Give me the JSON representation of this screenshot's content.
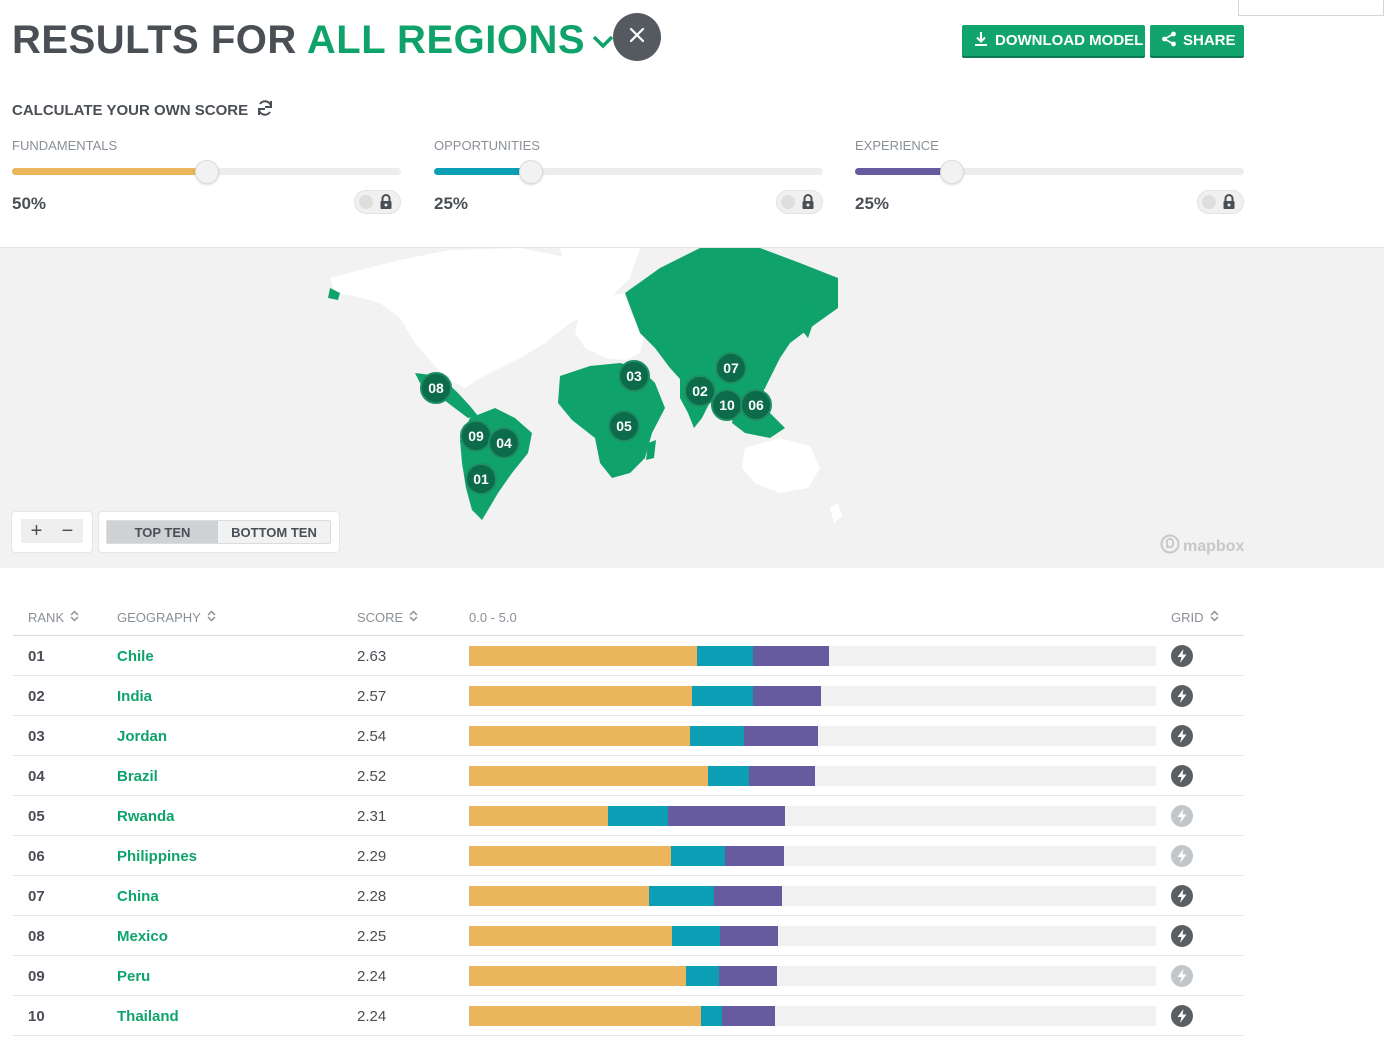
{
  "header": {
    "title_prefix": "RESULTS FOR",
    "region": "ALL REGIONS",
    "download_label": "DOWNLOAD MODEL",
    "share_label": "SHARE"
  },
  "calculator": {
    "title": "CALCULATE YOUR OWN SCORE",
    "sliders": [
      {
        "label": "FUNDAMENTALS",
        "value_label": "50%",
        "value": 0.5,
        "color": "#ebb55b"
      },
      {
        "label": "OPPORTUNITIES",
        "value_label": "25%",
        "value": 0.25,
        "color": "#0b9eb4"
      },
      {
        "label": "EXPERIENCE",
        "value_label": "25%",
        "value": 0.25,
        "color": "#655b9e"
      }
    ]
  },
  "map": {
    "markers": [
      "01",
      "02",
      "03",
      "04",
      "05",
      "06",
      "07",
      "08",
      "09",
      "10"
    ],
    "zoom_in": "+",
    "zoom_out": "−",
    "top_ten": "TOP TEN",
    "bottom_ten": "BOTTOM TEN",
    "attribution": "mapbox"
  },
  "table": {
    "headers": {
      "rank": "RANK",
      "geography": "GEOGRAPHY",
      "score": "SCORE",
      "range": "0.0 - 5.0",
      "grid": "GRID"
    },
    "scale_max": 5.0,
    "rows": [
      {
        "rank": "01",
        "geography": "Chile",
        "score": "2.63",
        "fundamentals": 1.66,
        "opportunities": 0.41,
        "experience": 0.55,
        "grid": "dark"
      },
      {
        "rank": "02",
        "geography": "India",
        "score": "2.57",
        "fundamentals": 1.62,
        "opportunities": 0.45,
        "experience": 0.49,
        "grid": "dark"
      },
      {
        "rank": "03",
        "geography": "Jordan",
        "score": "2.54",
        "fundamentals": 1.61,
        "opportunities": 0.39,
        "experience": 0.54,
        "grid": "dark"
      },
      {
        "rank": "04",
        "geography": "Brazil",
        "score": "2.52",
        "fundamentals": 1.74,
        "opportunities": 0.3,
        "experience": 0.48,
        "grid": "dark"
      },
      {
        "rank": "05",
        "geography": "Rwanda",
        "score": "2.31",
        "fundamentals": 1.01,
        "opportunities": 0.44,
        "experience": 0.85,
        "grid": "light"
      },
      {
        "rank": "06",
        "geography": "Philippines",
        "score": "2.29",
        "fundamentals": 1.47,
        "opportunities": 0.39,
        "experience": 0.43,
        "grid": "light"
      },
      {
        "rank": "07",
        "geography": "China",
        "score": "2.28",
        "fundamentals": 1.31,
        "opportunities": 0.47,
        "experience": 0.5,
        "grid": "dark"
      },
      {
        "rank": "08",
        "geography": "Mexico",
        "score": "2.25",
        "fundamentals": 1.48,
        "opportunities": 0.35,
        "experience": 0.42,
        "grid": "dark"
      },
      {
        "rank": "09",
        "geography": "Peru",
        "score": "2.24",
        "fundamentals": 1.58,
        "opportunities": 0.24,
        "experience": 0.42,
        "grid": "light"
      },
      {
        "rank": "10",
        "geography": "Thailand",
        "score": "2.24",
        "fundamentals": 1.69,
        "opportunities": 0.15,
        "experience": 0.39,
        "grid": "dark"
      }
    ]
  },
  "colors": {
    "brand_green": "#0fa36b",
    "fundamentals": "#ebb55b",
    "opportunities": "#0b9eb4",
    "experience": "#655b9e"
  },
  "icons": [
    "chevron-down-icon",
    "close-icon",
    "download-icon",
    "share-icon",
    "refresh-icon",
    "lock-icon",
    "lightning-icon",
    "sort-icon",
    "mapbox-logo-icon"
  ]
}
